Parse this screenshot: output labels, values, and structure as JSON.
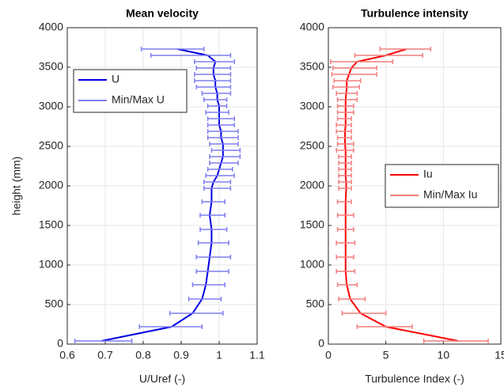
{
  "chart_data": [
    {
      "type": "line",
      "title": "Mean velocity",
      "xlabel": "U/Uref (-)",
      "ylabel": "height (mm)",
      "xlim": [
        0.6,
        1.1
      ],
      "ylim": [
        0,
        4000
      ],
      "xticks": [
        0.6,
        0.7,
        0.8,
        0.9,
        1,
        1.1
      ],
      "yticks": [
        0,
        500,
        1000,
        1500,
        2000,
        2500,
        3000,
        3500,
        4000
      ],
      "grid": true,
      "legend": "northwest",
      "y": [
        40,
        220,
        390,
        570,
        750,
        920,
        1100,
        1280,
        1450,
        1630,
        1800,
        1970,
        2050,
        2130,
        2210,
        2290,
        2370,
        2450,
        2530,
        2610,
        2690,
        2770,
        2850,
        2930,
        3010,
        3090,
        3170,
        3250,
        3330,
        3410,
        3490,
        3570,
        3650,
        3730
      ],
      "series": [
        {
          "name": "U",
          "color": "#0000e6",
          "values": [
            0.69,
            0.875,
            0.93,
            0.955,
            0.965,
            0.97,
            0.975,
            0.98,
            0.98,
            0.975,
            0.98,
            0.98,
            0.985,
            0.995,
            1.0,
            1.005,
            1.01,
            1.01,
            1.01,
            1.005,
            1.005,
            1.0,
            1.0,
            1.0,
            1.0,
            0.995,
            0.995,
            0.99,
            0.99,
            0.985,
            0.985,
            0.99,
            0.97,
            0.89
          ]
        },
        {
          "name": "Min/Max  U",
          "color": "#7f7ff2",
          "min": [
            0.62,
            0.79,
            0.87,
            0.92,
            0.93,
            0.94,
            0.94,
            0.945,
            0.95,
            0.95,
            0.955,
            0.96,
            0.96,
            0.965,
            0.97,
            0.975,
            0.975,
            0.98,
            0.975,
            0.97,
            0.97,
            0.97,
            0.97,
            0.965,
            0.97,
            0.96,
            0.955,
            0.94,
            0.935,
            0.935,
            0.94,
            0.935,
            0.82,
            0.795
          ],
          "max": [
            0.77,
            0.955,
            1.01,
            1.005,
            1.015,
            1.025,
            1.03,
            1.025,
            1.02,
            1.015,
            1.015,
            1.03,
            1.03,
            1.04,
            1.035,
            1.05,
            1.055,
            1.055,
            1.05,
            1.05,
            1.05,
            1.04,
            1.04,
            1.025,
            1.02,
            1.02,
            1.03,
            1.03,
            1.03,
            1.03,
            1.03,
            1.04,
            1.03,
            0.96
          ]
        }
      ]
    },
    {
      "type": "line",
      "title": "Turbulence intensity",
      "xlabel": "Turbulence Index (-)",
      "xlim": [
        0,
        15
      ],
      "ylim": [
        0,
        4000
      ],
      "xticks": [
        0,
        5,
        10,
        15
      ],
      "yticks": [
        0,
        500,
        1000,
        1500,
        2000,
        2500,
        3000,
        3500,
        4000
      ],
      "grid": true,
      "legend": "east",
      "y": [
        40,
        220,
        390,
        570,
        750,
        920,
        1100,
        1280,
        1450,
        1630,
        1800,
        1970,
        2050,
        2130,
        2210,
        2290,
        2370,
        2450,
        2530,
        2610,
        2690,
        2770,
        2850,
        2930,
        3010,
        3090,
        3170,
        3250,
        3330,
        3410,
        3490,
        3570,
        3650,
        3730
      ],
      "series": [
        {
          "name": "Iu",
          "color": "#ff0000",
          "values": [
            11.3,
            5.0,
            2.8,
            1.9,
            1.6,
            1.5,
            1.5,
            1.5,
            1.5,
            1.5,
            1.5,
            1.55,
            1.55,
            1.5,
            1.5,
            1.5,
            1.5,
            1.5,
            1.45,
            1.45,
            1.45,
            1.5,
            1.5,
            1.5,
            1.5,
            1.5,
            1.55,
            1.6,
            1.6,
            1.8,
            2.0,
            2.5,
            5.0,
            6.8
          ]
        },
        {
          "name": "Min/Max  Iu",
          "color": "#f27f7f",
          "min": [
            8.3,
            2.5,
            1.2,
            0.9,
            0.8,
            0.7,
            0.7,
            0.7,
            0.8,
            0.8,
            0.8,
            0.9,
            0.9,
            0.9,
            0.9,
            0.9,
            0.9,
            0.7,
            0.8,
            0.8,
            0.7,
            0.7,
            0.8,
            0.8,
            0.8,
            0.8,
            0.7,
            0.4,
            0.5,
            0.3,
            0.4,
            0.2,
            2.3,
            4.5
          ],
          "max": [
            13.9,
            7.3,
            5.0,
            3.2,
            2.5,
            2.3,
            2.2,
            2.3,
            2.2,
            2.2,
            2.0,
            2.0,
            2.0,
            2.0,
            2.0,
            2.0,
            2.0,
            2.2,
            2.2,
            2.0,
            2.0,
            2.0,
            2.0,
            2.2,
            2.2,
            2.5,
            2.5,
            2.7,
            2.8,
            4.2,
            4.2,
            5.6,
            8.2,
            8.9
          ]
        }
      ]
    }
  ]
}
